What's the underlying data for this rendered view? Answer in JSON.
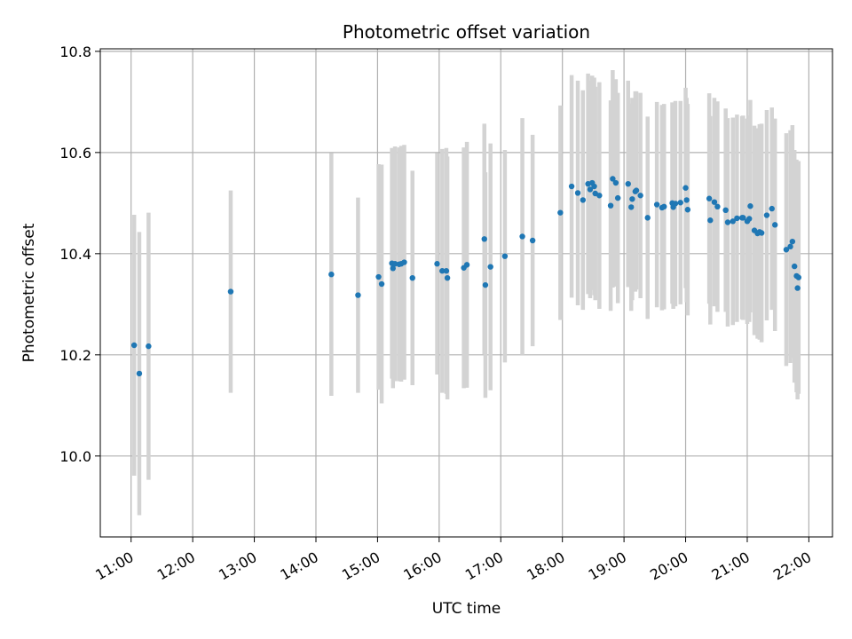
{
  "chart_data": {
    "type": "scatter",
    "title": "Photometric offset variation",
    "xlabel": "UTC time",
    "ylabel": "Photometric offset",
    "grid": true,
    "xlim": [
      "10:30",
      "22:23"
    ],
    "ylim": [
      9.84,
      10.805
    ],
    "x_ticks": [
      "11:00",
      "12:00",
      "13:00",
      "14:00",
      "15:00",
      "16:00",
      "17:00",
      "18:00",
      "19:00",
      "20:00",
      "21:00",
      "22:00"
    ],
    "y_ticks": [
      "10.0",
      "10.2",
      "10.4",
      "10.6",
      "10.8"
    ],
    "colors": {
      "point": "#1f77b4",
      "errorbar": "#d3d3d3",
      "grid": "#b0b0b0"
    },
    "series": [
      {
        "x": [
          "11:03",
          "11:08",
          "11:17",
          "12:37",
          "14:15",
          "14:41",
          "15:01",
          "15:04",
          "15:14",
          "15:15",
          "15:17",
          "15:21",
          "15:23",
          "15:26",
          "15:34",
          "15:58",
          "16:03",
          "16:07",
          "16:08",
          "16:24",
          "16:27",
          "16:44",
          "16:45",
          "16:50",
          "17:04",
          "17:21",
          "17:31",
          "17:58",
          "18:09",
          "18:15",
          "18:20",
          "18:25",
          "18:27",
          "18:29",
          "18:31",
          "18:32",
          "18:36",
          "18:47",
          "18:49",
          "18:52",
          "18:54",
          "19:04",
          "19:07",
          "19:08",
          "19:11",
          "19:12",
          "19:16",
          "19:23",
          "19:32",
          "19:37",
          "19:39",
          "19:47",
          "19:48",
          "19:50",
          "19:55",
          "20:00",
          "20:01",
          "20:02",
          "20:23",
          "20:24",
          "20:28",
          "20:31",
          "20:39",
          "20:41",
          "20:46",
          "20:50",
          "20:55",
          "20:56",
          "21:00",
          "21:02",
          "21:03",
          "21:07",
          "21:10",
          "21:12",
          "21:14",
          "21:19",
          "21:24",
          "21:27",
          "21:38",
          "21:42",
          "21:44",
          "21:46",
          "21:48",
          "21:49",
          "21:50"
        ],
        "y": [
          10.219,
          10.163,
          10.217,
          10.325,
          10.359,
          10.318,
          10.354,
          10.34,
          10.381,
          10.371,
          10.38,
          10.379,
          10.38,
          10.383,
          10.352,
          10.38,
          10.366,
          10.366,
          10.352,
          10.372,
          10.378,
          10.429,
          10.338,
          10.374,
          10.395,
          10.434,
          10.426,
          10.481,
          10.533,
          10.52,
          10.506,
          10.538,
          10.527,
          10.54,
          10.533,
          10.519,
          10.515,
          10.495,
          10.548,
          10.54,
          10.51,
          10.538,
          10.492,
          10.508,
          10.523,
          10.525,
          10.515,
          10.471,
          10.497,
          10.491,
          10.493,
          10.5,
          10.492,
          10.499,
          10.501,
          10.53,
          10.506,
          10.487,
          10.509,
          10.466,
          10.502,
          10.493,
          10.486,
          10.462,
          10.464,
          10.47,
          10.471,
          10.471,
          10.464,
          10.469,
          10.494,
          10.446,
          10.44,
          10.443,
          10.441,
          10.476,
          10.489,
          10.457,
          10.408,
          10.414,
          10.424,
          10.375,
          10.356,
          10.332,
          10.353
        ],
        "yerr": [
          0.258,
          0.28,
          0.264,
          0.2,
          0.24,
          0.193,
          0.223,
          0.236,
          0.228,
          0.237,
          0.232,
          0.231,
          0.233,
          0.232,
          0.212,
          0.219,
          0.241,
          0.243,
          0.24,
          0.238,
          0.243,
          0.228,
          0.223,
          0.244,
          0.21,
          0.234,
          0.209,
          0.212,
          0.22,
          0.222,
          0.217,
          0.218,
          0.215,
          0.212,
          0.215,
          0.211,
          0.224,
          0.208,
          0.215,
          0.205,
          0.208,
          0.204,
          0.205,
          0.2,
          0.198,
          0.196,
          0.203,
          0.2,
          0.203,
          0.203,
          0.203,
          0.199,
          0.201,
          0.203,
          0.201,
          0.198,
          0.202,
          0.209,
          0.208,
          0.206,
          0.206,
          0.208,
          0.201,
          0.206,
          0.205,
          0.205,
          0.201,
          0.202,
          0.203,
          0.204,
          0.21,
          0.207,
          0.208,
          0.213,
          0.216,
          0.208,
          0.2,
          0.21,
          0.23,
          0.23,
          0.23,
          0.23,
          0.23,
          0.22,
          0.23
        ]
      }
    ]
  }
}
